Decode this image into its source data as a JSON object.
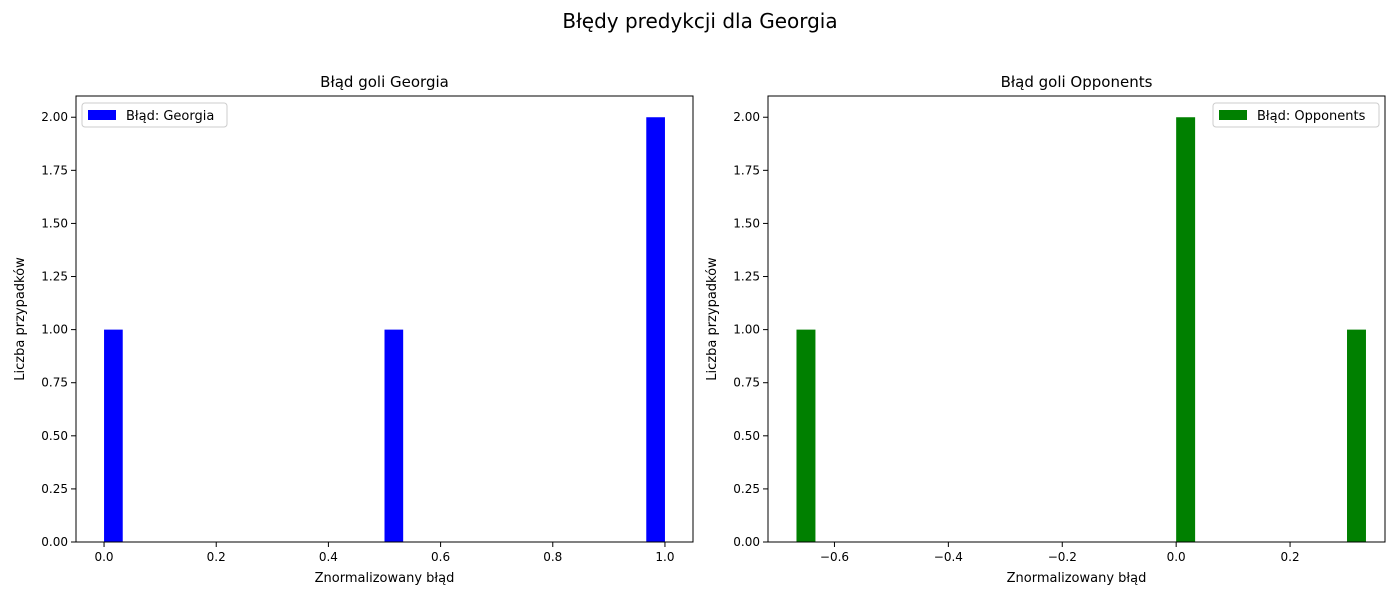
{
  "suptitle": "Błędy predykcji dla Georgia",
  "chart_data": [
    {
      "type": "bar",
      "title": "Błąd goli Georgia",
      "xlabel": "Znormalizowany błąd",
      "ylabel": "Liczba przypadków",
      "xlim": [
        -0.05,
        1.05
      ],
      "ylim": [
        0,
        2.1
      ],
      "bar_width": 0.0333,
      "xticks": [
        0.0,
        0.2,
        0.4,
        0.6,
        0.8,
        1.0
      ],
      "xtick_labels": [
        "0.0",
        "0.2",
        "0.4",
        "0.6",
        "0.8",
        "1.0"
      ],
      "yticks": [
        0,
        0.25,
        0.5,
        0.75,
        1.0,
        1.25,
        1.5,
        1.75,
        2.0
      ],
      "ytick_labels": [
        "0.00",
        "0.25",
        "0.50",
        "0.75",
        "1.00",
        "1.25",
        "1.50",
        "1.75",
        "2.00"
      ],
      "legend": {
        "label": "Błąd: Georgia",
        "position": "top-left"
      },
      "color": "#0000ff",
      "bars": [
        {
          "x": 0.0,
          "value": 1
        },
        {
          "x": 0.5,
          "value": 1
        },
        {
          "x": 0.9667,
          "value": 2
        }
      ]
    },
    {
      "type": "bar",
      "title": "Błąd goli Opponents",
      "xlabel": "Znormalizowany błąd",
      "ylabel": "Liczba przypadków",
      "xlim": [
        -0.7167,
        0.3667
      ],
      "ylim": [
        0,
        2.1
      ],
      "bar_width": 0.0333,
      "xticks": [
        -0.6,
        -0.4,
        -0.2,
        0.0,
        0.2
      ],
      "xtick_labels": [
        "−0.6",
        "−0.4",
        "−0.2",
        "0.0",
        "0.2"
      ],
      "yticks": [
        0,
        0.25,
        0.5,
        0.75,
        1.0,
        1.25,
        1.5,
        1.75,
        2.0
      ],
      "ytick_labels": [
        "0.00",
        "0.25",
        "0.50",
        "0.75",
        "1.00",
        "1.25",
        "1.50",
        "1.75",
        "2.00"
      ],
      "legend": {
        "label": "Błąd: Opponents",
        "position": "top-right"
      },
      "color": "#008000",
      "bars": [
        {
          "x": -0.6667,
          "value": 1
        },
        {
          "x": 0.0,
          "value": 2
        },
        {
          "x": 0.3,
          "value": 1
        }
      ]
    }
  ]
}
